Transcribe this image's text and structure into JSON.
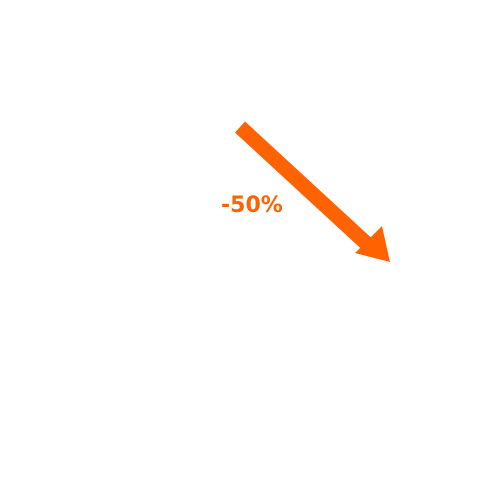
{
  "change": {
    "label": "-50%",
    "direction": "down",
    "color": "#ff6200"
  },
  "icons": {
    "arrow": "arrow-down-right-icon"
  }
}
